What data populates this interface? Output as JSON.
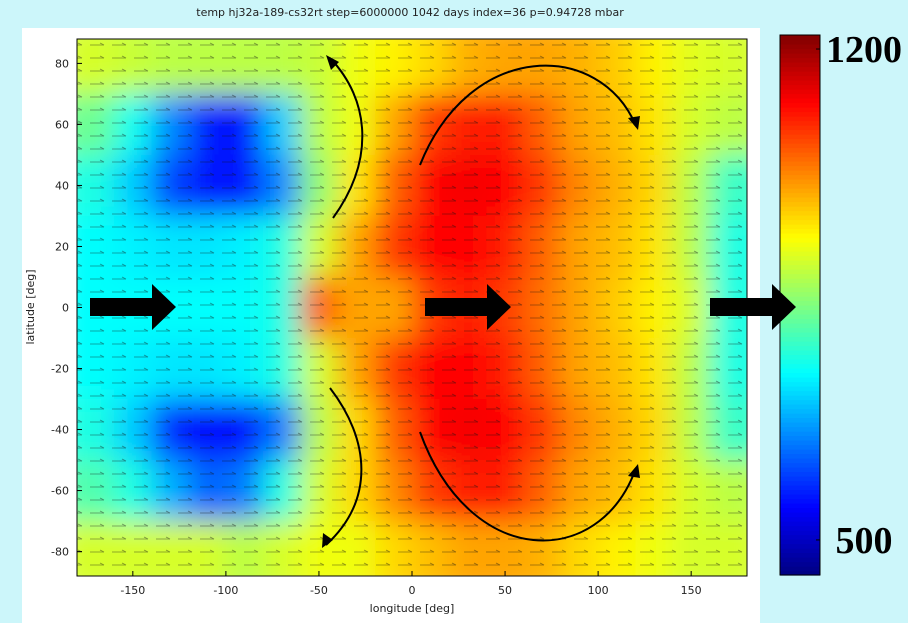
{
  "chart_data": {
    "type": "heatmap",
    "title": "temp   hj32a-189-cs32rt  step=6000000   1042 days  index=36  p=0.94728 mbar",
    "x_label": "longitude [deg]",
    "y_label": "latitude [deg]",
    "xlim": [
      -180,
      180
    ],
    "ylim": [
      -88,
      88
    ],
    "xticks": [
      -150,
      -100,
      -50,
      0,
      50,
      100,
      150
    ],
    "yticks": [
      -80,
      -60,
      -40,
      -20,
      0,
      20,
      40,
      60,
      80
    ],
    "x_edges": [
      -180,
      -160,
      -140,
      -120,
      -100,
      -80,
      -60,
      -40,
      -20,
      0,
      20,
      40,
      60,
      80,
      100,
      120,
      140,
      160,
      180
    ],
    "y_edges": [
      88,
      70,
      50,
      30,
      10,
      -10,
      -30,
      -50,
      -70,
      -88
    ],
    "values": [
      [
        900,
        890,
        880,
        880,
        880,
        880,
        890,
        920,
        940,
        960,
        990,
        1000,
        1000,
        990,
        970,
        940,
        910,
        900
      ],
      [
        820,
        750,
        650,
        560,
        560,
        700,
        880,
        920,
        1000,
        1080,
        1100,
        1100,
        1050,
        1000,
        980,
        950,
        900,
        880
      ],
      [
        760,
        700,
        600,
        560,
        560,
        650,
        850,
        950,
        1050,
        1120,
        1130,
        1120,
        1080,
        1020,
        990,
        960,
        880,
        780
      ],
      [
        740,
        730,
        720,
        720,
        730,
        760,
        900,
        1000,
        1080,
        1120,
        1120,
        1100,
        1050,
        1000,
        980,
        950,
        880,
        760
      ],
      [
        740,
        740,
        740,
        740,
        740,
        760,
        1050,
        1000,
        1000,
        1080,
        1100,
        1080,
        1040,
        1000,
        970,
        940,
        900,
        760
      ],
      [
        740,
        730,
        720,
        720,
        730,
        760,
        900,
        1000,
        1080,
        1120,
        1120,
        1100,
        1050,
        1000,
        980,
        950,
        880,
        760
      ],
      [
        760,
        700,
        580,
        550,
        560,
        640,
        880,
        960,
        1050,
        1120,
        1130,
        1120,
        1080,
        1020,
        990,
        960,
        880,
        780
      ],
      [
        800,
        760,
        680,
        620,
        640,
        760,
        900,
        960,
        1020,
        1080,
        1100,
        1100,
        1050,
        1000,
        980,
        950,
        900,
        880
      ],
      [
        900,
        900,
        900,
        900,
        880,
        900,
        920,
        920,
        960,
        980,
        1000,
        1000,
        990,
        960,
        940,
        920,
        900,
        900
      ]
    ],
    "colorbar": {
      "clim": [
        450,
        1220
      ],
      "ticks": [
        500,
        1200
      ]
    }
  }
}
